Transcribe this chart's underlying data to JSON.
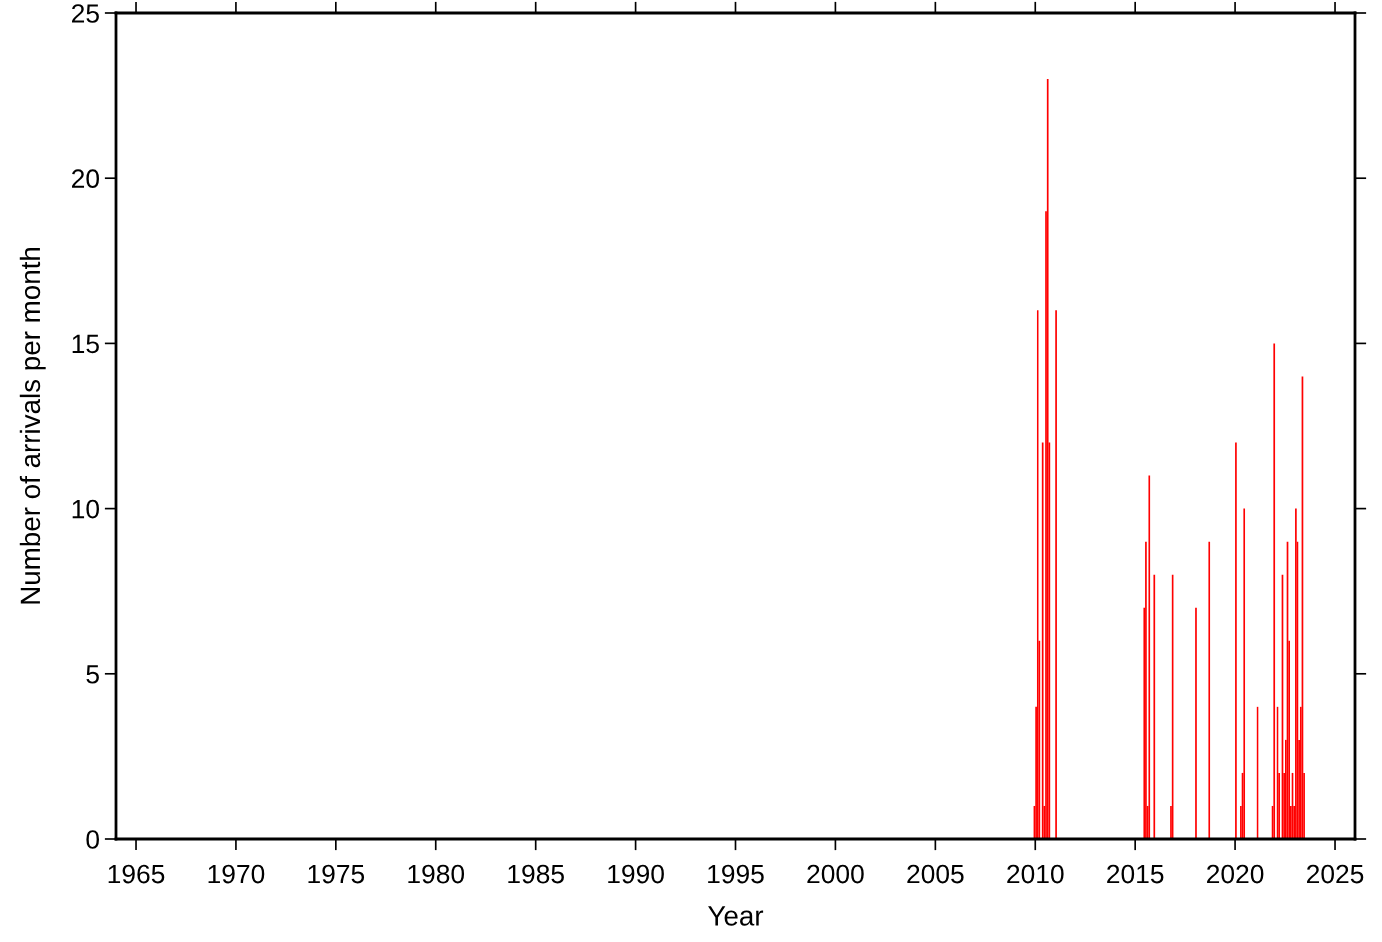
{
  "chart_data": {
    "type": "bar",
    "xlabel": "Year",
    "ylabel": "Number of arrivals per month",
    "x": [
      "2009-12",
      "2010-01",
      "2010-02",
      "2010-03",
      "2010-05",
      "2010-06",
      "2010-07",
      "2010-08",
      "2010-09",
      "2011-01",
      "2015-06",
      "2015-07",
      "2015-08",
      "2015-09",
      "2015-12",
      "2016-10",
      "2016-11",
      "2018-01",
      "2018-09",
      "2020-01",
      "2020-04",
      "2020-05",
      "2020-06",
      "2021-02",
      "2021-11",
      "2021-12",
      "2022-02",
      "2022-03",
      "2022-05",
      "2022-06",
      "2022-07",
      "2022-08",
      "2022-09",
      "2022-10",
      "2022-11",
      "2022-12",
      "2023-01",
      "2023-02",
      "2023-03",
      "2023-04",
      "2023-05",
      "2023-06"
    ],
    "values": [
      1,
      4,
      16,
      6,
      12,
      1,
      19,
      23,
      12,
      16,
      7,
      9,
      1,
      11,
      8,
      1,
      8,
      7,
      9,
      12,
      1,
      2,
      10,
      4,
      1,
      15,
      4,
      2,
      8,
      2,
      3,
      9,
      6,
      1,
      2,
      1,
      10,
      9,
      3,
      4,
      14,
      2
    ],
    "color": "#ff0000",
    "xlim": [
      "1964",
      "2026"
    ],
    "xticks": [
      "1965",
      "1970",
      "1975",
      "1980",
      "1985",
      "1990",
      "1995",
      "2000",
      "2005",
      "2010",
      "2015",
      "2020",
      "2025"
    ],
    "ylim": [
      0,
      25
    ],
    "yticks": [
      0,
      5,
      10,
      15,
      20,
      25
    ],
    "grid": false
  }
}
